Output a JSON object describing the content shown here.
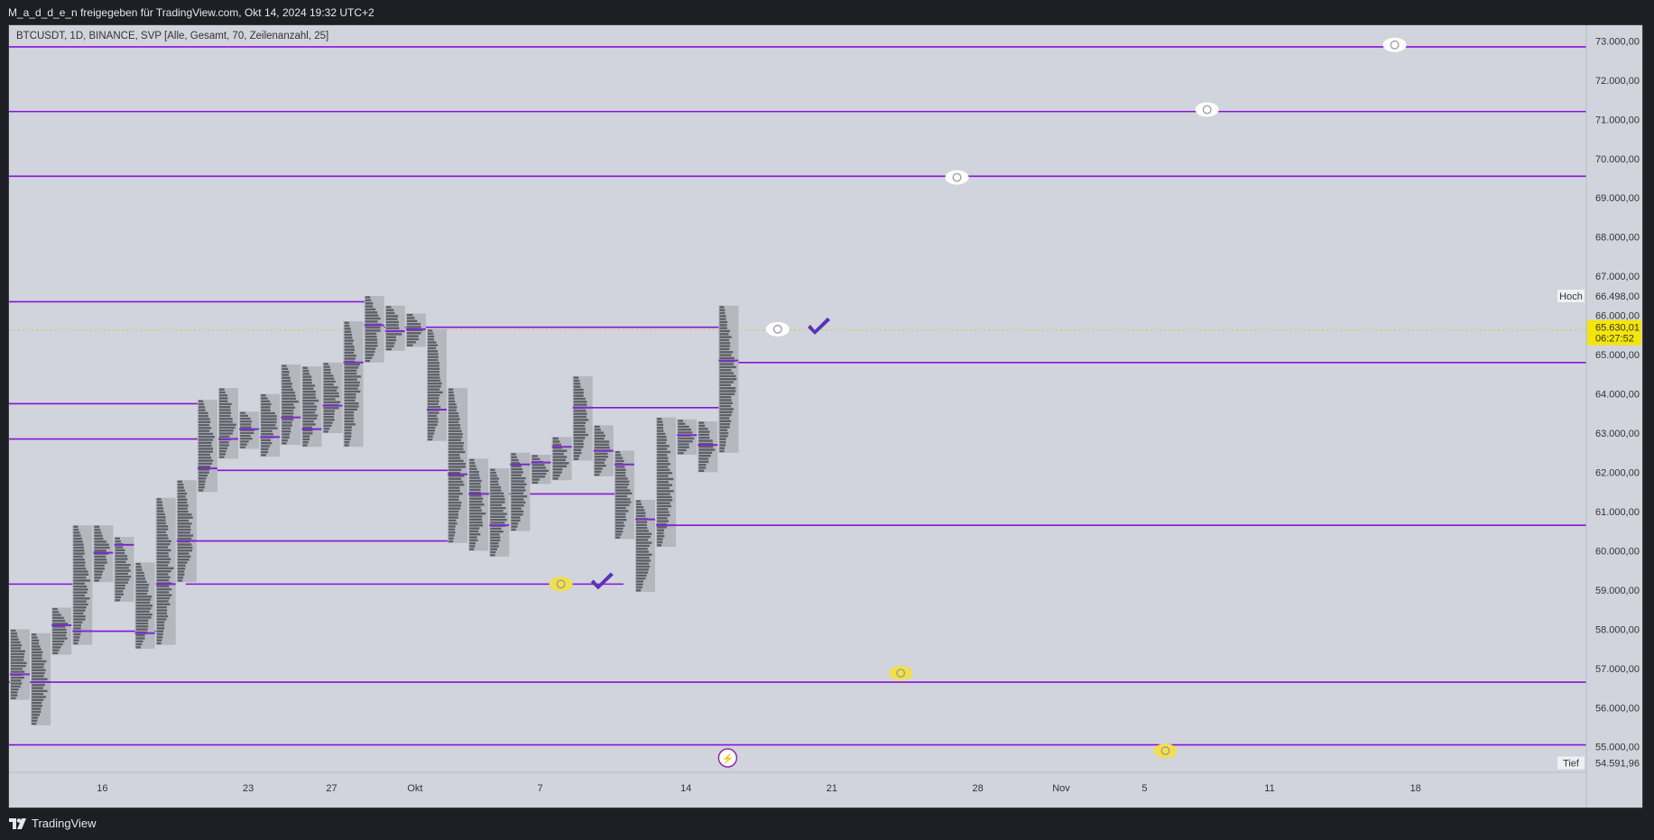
{
  "header": {
    "title": "M_a_d_d_e_n freigegeben für TradingView.com, Okt 14, 2024 19:32 UTC+2"
  },
  "legend": {
    "text": "BTCUSDT, 1D, BINANCE, SVP [Alle, Gesamt, 70, Zeilenanzahl, 25]"
  },
  "footer": {
    "brand": "TradingView",
    "logo_icon": "tradingview-logo-icon"
  },
  "colors": {
    "background": "#d1d4dc",
    "level_line": "#8a12d8",
    "profile_bar": "#5d6068",
    "profile_box": "#b4b7be",
    "poc": "#7b2bc9",
    "current_price_bg": "#f5e50a",
    "eye_white": "#ffffff",
    "eye_yellow": "#f2e04a",
    "check": "#5a33b8"
  },
  "chart_data": {
    "type": "candlestick-volume-profile",
    "symbol": "BTCUSDT",
    "interval": "1D",
    "exchange": "BINANCE",
    "indicator": "SVP [Alle, Gesamt, 70, Zeilenanzahl, 25]",
    "y_axis": {
      "ylim": [
        54350,
        73400
      ],
      "ticks": [
        "55.000,00",
        "56.000,00",
        "57.000,00",
        "58.000,00",
        "59.000,00",
        "60.000,00",
        "61.000,00",
        "62.000,00",
        "63.000,00",
        "64.000,00",
        "65.000,00",
        "66.000,00",
        "67.000,00",
        "68.000,00",
        "69.000,00",
        "70.000,00",
        "71.000,00",
        "72.000,00",
        "73.000,00"
      ],
      "tick_values": [
        55000,
        56000,
        57000,
        58000,
        59000,
        60000,
        61000,
        62000,
        63000,
        64000,
        65000,
        66000,
        67000,
        68000,
        69000,
        70000,
        71000,
        72000,
        73000
      ]
    },
    "x_axis": {
      "labels": [
        "16",
        "23",
        "27",
        "Okt",
        "7",
        "14",
        "21",
        "28",
        "Nov",
        "5",
        "11",
        "18"
      ],
      "label_days": [
        4,
        11,
        15,
        19,
        25,
        32,
        39,
        46,
        50,
        54,
        60,
        67
      ],
      "start_date": "2024-09-12"
    },
    "candles": [
      {
        "d": 0,
        "o": 57800,
        "h": 58000,
        "l": 56200,
        "c": 56800,
        "poc": 56850
      },
      {
        "d": 1,
        "o": 56800,
        "h": 57900,
        "l": 55550,
        "c": 57400,
        "poc": 56650
      },
      {
        "d": 2,
        "o": 57500,
        "h": 58550,
        "l": 57350,
        "c": 58100,
        "poc": 58100
      },
      {
        "d": 3,
        "o": 58200,
        "h": 60650,
        "l": 57600,
        "c": 60150,
        "poc": 57950
      },
      {
        "d": 4,
        "o": 60100,
        "h": 60650,
        "l": 59200,
        "c": 60000,
        "poc": 59950
      },
      {
        "d": 5,
        "o": 60000,
        "h": 60350,
        "l": 58700,
        "c": 59200,
        "poc": 60150
      },
      {
        "d": 6,
        "o": 59200,
        "h": 59700,
        "l": 57500,
        "c": 58200,
        "poc": 57900
      },
      {
        "d": 7,
        "o": 58200,
        "h": 61350,
        "l": 57600,
        "c": 60500,
        "poc": 59150
      },
      {
        "d": 8,
        "o": 60500,
        "h": 61800,
        "l": 59200,
        "c": 61700,
        "poc": 60250
      },
      {
        "d": 9,
        "o": 61700,
        "h": 63850,
        "l": 61500,
        "c": 63400,
        "poc": 62100
      },
      {
        "d": 10,
        "o": 63400,
        "h": 64150,
        "l": 62350,
        "c": 63000,
        "poc": 62850
      },
      {
        "d": 11,
        "o": 63000,
        "h": 63550,
        "l": 62600,
        "c": 63200,
        "poc": 63100
      },
      {
        "d": 12,
        "o": 63200,
        "h": 64000,
        "l": 62400,
        "c": 63300,
        "poc": 62900
      },
      {
        "d": 13,
        "o": 63300,
        "h": 64750,
        "l": 62700,
        "c": 64100,
        "poc": 63400
      },
      {
        "d": 14,
        "o": 64100,
        "h": 64700,
        "l": 62650,
        "c": 63400,
        "poc": 63100
      },
      {
        "d": 15,
        "o": 63400,
        "h": 64800,
        "l": 63000,
        "c": 63200,
        "poc": 63700
      },
      {
        "d": 16,
        "o": 63200,
        "h": 65850,
        "l": 62650,
        "c": 65200,
        "poc": 64800
      },
      {
        "d": 17,
        "o": 65200,
        "h": 66500,
        "l": 64800,
        "c": 65850,
        "poc": 65750
      },
      {
        "d": 18,
        "o": 65850,
        "h": 66250,
        "l": 65100,
        "c": 65600,
        "poc": 65600
      },
      {
        "d": 19,
        "o": 65600,
        "h": 66050,
        "l": 65200,
        "c": 65800,
        "poc": 65650
      },
      {
        "d": 20,
        "o": 65600,
        "h": 65650,
        "l": 62800,
        "c": 63500,
        "poc": 63600
      },
      {
        "d": 21,
        "o": 63500,
        "h": 64150,
        "l": 60200,
        "c": 60600,
        "poc": 61950
      },
      {
        "d": 22,
        "o": 60600,
        "h": 62350,
        "l": 60000,
        "c": 61400,
        "poc": 61450
      },
      {
        "d": 23,
        "o": 61400,
        "h": 62100,
        "l": 59850,
        "c": 60800,
        "poc": 60650
      },
      {
        "d": 24,
        "o": 60800,
        "h": 62500,
        "l": 60500,
        "c": 62050,
        "poc": 62200
      },
      {
        "d": 25,
        "o": 62050,
        "h": 62450,
        "l": 61700,
        "c": 62100,
        "poc": 62250
      },
      {
        "d": 26,
        "o": 62100,
        "h": 62900,
        "l": 61800,
        "c": 62850,
        "poc": 62650
      },
      {
        "d": 27,
        "o": 62850,
        "h": 64450,
        "l": 62300,
        "c": 62250,
        "poc": 63650
      },
      {
        "d": 28,
        "o": 62250,
        "h": 63200,
        "l": 61900,
        "c": 62100,
        "poc": 62550
      },
      {
        "d": 29,
        "o": 62100,
        "h": 62550,
        "l": 60300,
        "c": 60600,
        "poc": 62200
      },
      {
        "d": 30,
        "o": 60600,
        "h": 61300,
        "l": 58950,
        "c": 60300,
        "poc": 60800
      },
      {
        "d": 31,
        "o": 60300,
        "h": 63400,
        "l": 60100,
        "c": 62600,
        "poc": 60650
      },
      {
        "d": 32,
        "o": 62600,
        "h": 63350,
        "l": 62450,
        "c": 63200,
        "poc": 62950
      },
      {
        "d": 33,
        "o": 63200,
        "h": 63300,
        "l": 62000,
        "c": 62800,
        "poc": 62700
      },
      {
        "d": 34,
        "o": 62800,
        "h": 66250,
        "l": 62500,
        "c": 65630,
        "poc": 64850
      }
    ],
    "levels": [
      {
        "price": 72850,
        "from_day": -1,
        "to": "right"
      },
      {
        "price": 71200,
        "from_day": -1,
        "to": "right"
      },
      {
        "price": 69550,
        "from_day": -1,
        "to": "right"
      },
      {
        "price": 66350,
        "from_day": -1,
        "to_day": 17
      },
      {
        "price": 65700,
        "from_day": 17,
        "to_day": 34
      },
      {
        "price": 64800,
        "from_day": 34,
        "to": "right"
      },
      {
        "price": 63750,
        "from_day": -1,
        "to_day": 9
      },
      {
        "price": 63650,
        "from_day": 27,
        "to_day": 34
      },
      {
        "price": 62850,
        "from_day": -1,
        "to_day": 9
      },
      {
        "price": 62050,
        "from_day": 9,
        "to_day": 21
      },
      {
        "price": 61450,
        "from_day": 22,
        "to_day": 29
      },
      {
        "price": 60650,
        "from_day": 31,
        "to": "right"
      },
      {
        "price": 60250,
        "from_day": 8,
        "to_day": 21
      },
      {
        "price": 59150,
        "from_day": -1,
        "to_day": 3
      },
      {
        "price": 59150,
        "from_day": 8,
        "to_day": 29
      },
      {
        "price": 57950,
        "from_day": 3,
        "to_day": 7
      },
      {
        "price": 56650,
        "from_day": -1,
        "to": "right"
      },
      {
        "price": 55050,
        "from_day": -1,
        "to": "right"
      }
    ],
    "markers": [
      {
        "type": "eye",
        "color": "white",
        "day": 66,
        "price": 72900
      },
      {
        "type": "eye",
        "color": "white",
        "day": 57,
        "price": 71250
      },
      {
        "type": "eye",
        "color": "white",
        "day": 45,
        "price": 69520
      },
      {
        "type": "eye",
        "color": "white",
        "day": 36.4,
        "price": 65650
      },
      {
        "type": "check",
        "day": 38.4,
        "price": 65650
      },
      {
        "type": "eye",
        "color": "yellow",
        "day": 26,
        "price": 59150
      },
      {
        "type": "check",
        "day": 28,
        "price": 59150
      },
      {
        "type": "eye",
        "color": "yellow",
        "day": 42.3,
        "price": 56880
      },
      {
        "type": "eye",
        "color": "yellow",
        "day": 55,
        "price": 54900
      }
    ],
    "price_tags": {
      "high": {
        "label": "Hoch",
        "value": "66.498,00",
        "price": 66498
      },
      "low": {
        "label": "Tief",
        "value": "54.591,96",
        "price": 54591.96
      },
      "current": {
        "value": "65.630,01",
        "countdown": "06:27:52",
        "price": 65630
      }
    },
    "event_icon": {
      "day": 34,
      "symbol": "⚡"
    }
  }
}
